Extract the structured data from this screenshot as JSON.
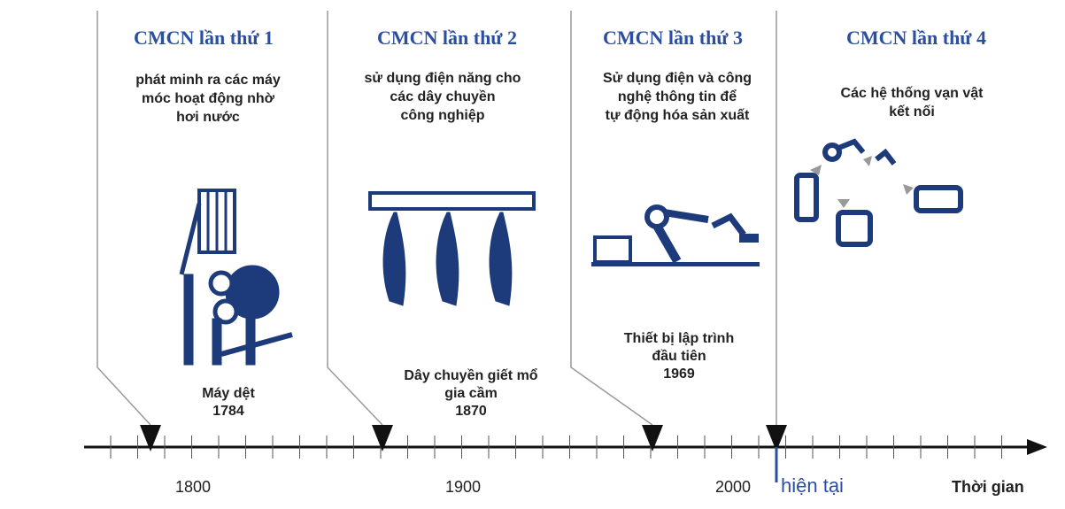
{
  "panels": [
    {
      "title": "CMCN lần thứ 1",
      "description": [
        "phát minh ra các máy",
        "móc hoạt động nhờ",
        "hơi nước"
      ],
      "event": [
        "Máy dệt"
      ],
      "year": 1784
    },
    {
      "title": "CMCN lần thứ 2",
      "description": [
        "sử dụng điện năng cho",
        "các dây chuyền",
        "công nghiệp"
      ],
      "event": [
        "Dây chuyền giết mổ",
        "gia cầm"
      ],
      "year": 1870
    },
    {
      "title": "CMCN lần thứ 3",
      "description": [
        "Sử dụng điện và công",
        "nghệ thông tin để",
        "tự động hóa sản xuất"
      ],
      "event": [
        "Thiết bị lập trình",
        "đầu tiên"
      ],
      "year": 1969
    },
    {
      "title": "CMCN lần thứ 4",
      "description": [
        "Các hệ thống vạn vật",
        "kết nối"
      ]
    }
  ],
  "timeline": {
    "ticks": [
      1800,
      1900,
      2000
    ],
    "present": "hiện tại",
    "axis_label": "Thời gian"
  }
}
